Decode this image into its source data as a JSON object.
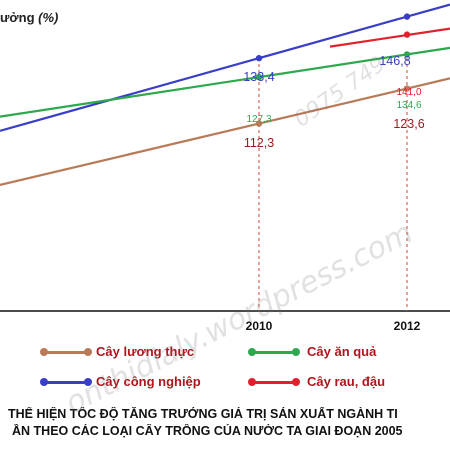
{
  "chart_data": {
    "type": "line",
    "ylabel_main": "ưởng",
    "ylabel_unit": "(%)",
    "x": [
      2010,
      2012
    ],
    "x_tick_labels": [
      "2010",
      "2012"
    ],
    "series": [
      {
        "name": "Cây lương thực",
        "color": "#b97a57",
        "values": [
          112.3,
          123.6
        ],
        "labels": [
          "112,3",
          "123,6"
        ],
        "label_color": "#9b1b22"
      },
      {
        "name": "Cây công nghiệp",
        "color": "#3a3ec7",
        "values": [
          133.4,
          146.8
        ],
        "labels": [
          "133,4",
          "146,8"
        ],
        "label_color": "#3a3ec7"
      },
      {
        "name": "Cây ăn quả",
        "color": "#2ea84f",
        "values": [
          127.3,
          134.6
        ],
        "labels": [
          "127,3",
          "134,6"
        ],
        "label_color": "#2ea84f"
      },
      {
        "name": "Cây rau, đậu",
        "color": "#e0212b",
        "values": [
          null,
          141.0
        ],
        "labels": [
          "",
          "141,0"
        ],
        "label_color": "#e0212b"
      }
    ]
  },
  "legend": {
    "items": [
      "Cây lương thực",
      "Cây ăn quả",
      "Cây công nghiệp",
      "Cây rau, đậu"
    ]
  },
  "caption": {
    "line1": "THỂ HIỆN TỐC ĐỘ TĂNG TRƯỞNG GIÁ TRỊ SẢN XUẤT NGÀNH TI",
    "line2": "ẦN THEO CÁC LOẠI CÂY TRỒNG CỦA NƯỚC TA GIAI ĐOẠN 2005"
  },
  "watermarks": {
    "phone": "0975 749",
    "site": "onthidialy.wordpress.com"
  }
}
